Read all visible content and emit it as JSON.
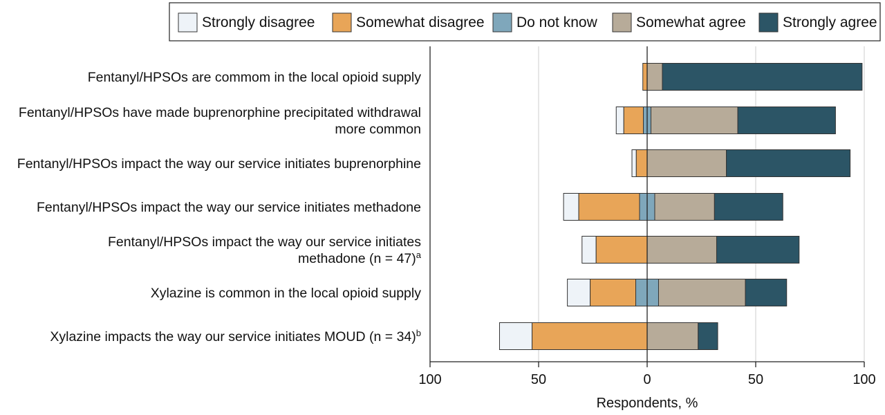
{
  "chart_data": {
    "type": "bar",
    "orientation": "horizontal",
    "stacked": "diverging",
    "title": "",
    "xlabel": "Respondents, %",
    "ylabel": "",
    "xlim": [
      -100,
      100
    ],
    "xticks": [
      -100,
      -50,
      0,
      50,
      100
    ],
    "xtick_labels": [
      "100",
      "50",
      "0",
      "50",
      "100"
    ],
    "grid": "vertical gridlines at 50 and 100 on both sides",
    "legend_position": "top",
    "legend": [
      {
        "name": "Strongly disagree",
        "color": "#eef3f8"
      },
      {
        "name": "Somewhat disagree",
        "color": "#e8a558"
      },
      {
        "name": "Do not know",
        "color": "#7fa7bb"
      },
      {
        "name": "Somewhat agree",
        "color": "#b7ab99"
      },
      {
        "name": "Strongly agree",
        "color": "#2c5566"
      }
    ],
    "rows": [
      {
        "label_lines": [
          "Fentanyl/HPSOs are commom in the local opioid supply"
        ],
        "label_sup": "",
        "strongly_disagree": 0,
        "somewhat_disagree": 2,
        "do_not_know": 0,
        "somewhat_agree": 7,
        "strongly_agree": 92
      },
      {
        "label_lines": [
          "Fentanyl/HPSOs have made buprenorphine precipitated withdrawal",
          "more common"
        ],
        "label_sup": "",
        "strongly_disagree": 3.5,
        "somewhat_disagree": 9,
        "do_not_know": 3.5,
        "somewhat_agree": 40,
        "strongly_agree": 45
      },
      {
        "label_lines": [
          "Fentanyl/HPSOs impact the way our service initiates buprenorphine"
        ],
        "label_sup": "",
        "strongly_disagree": 2,
        "somewhat_disagree": 5,
        "do_not_know": 0,
        "somewhat_agree": 36.5,
        "strongly_agree": 57
      },
      {
        "label_lines": [
          "Fentanyl/HPSOs impact the way our service initiates methadone"
        ],
        "label_sup": "",
        "strongly_disagree": 7,
        "somewhat_disagree": 28,
        "do_not_know": 7,
        "somewhat_agree": 27.5,
        "strongly_agree": 31.5
      },
      {
        "label_lines": [
          "Fentanyl/HPSOs impact the way our service initiates",
          "methadone (n = 47)"
        ],
        "label_sup": "a",
        "strongly_disagree": 6.5,
        "somewhat_disagree": 23.5,
        "do_not_know": 0,
        "somewhat_agree": 32,
        "strongly_agree": 38
      },
      {
        "label_lines": [
          "Xylazine is common in the local opioid supply"
        ],
        "label_sup": "",
        "strongly_disagree": 10.5,
        "somewhat_disagree": 21,
        "do_not_know": 10.5,
        "somewhat_agree": 40,
        "strongly_agree": 19
      },
      {
        "label_lines": [
          "Xylazine impacts the way our service initiates MOUD (n = 34)"
        ],
        "label_sup": "b",
        "strongly_disagree": 15,
        "somewhat_disagree": 53,
        "do_not_know": 0,
        "somewhat_agree": 23.5,
        "strongly_agree": 9
      }
    ]
  }
}
